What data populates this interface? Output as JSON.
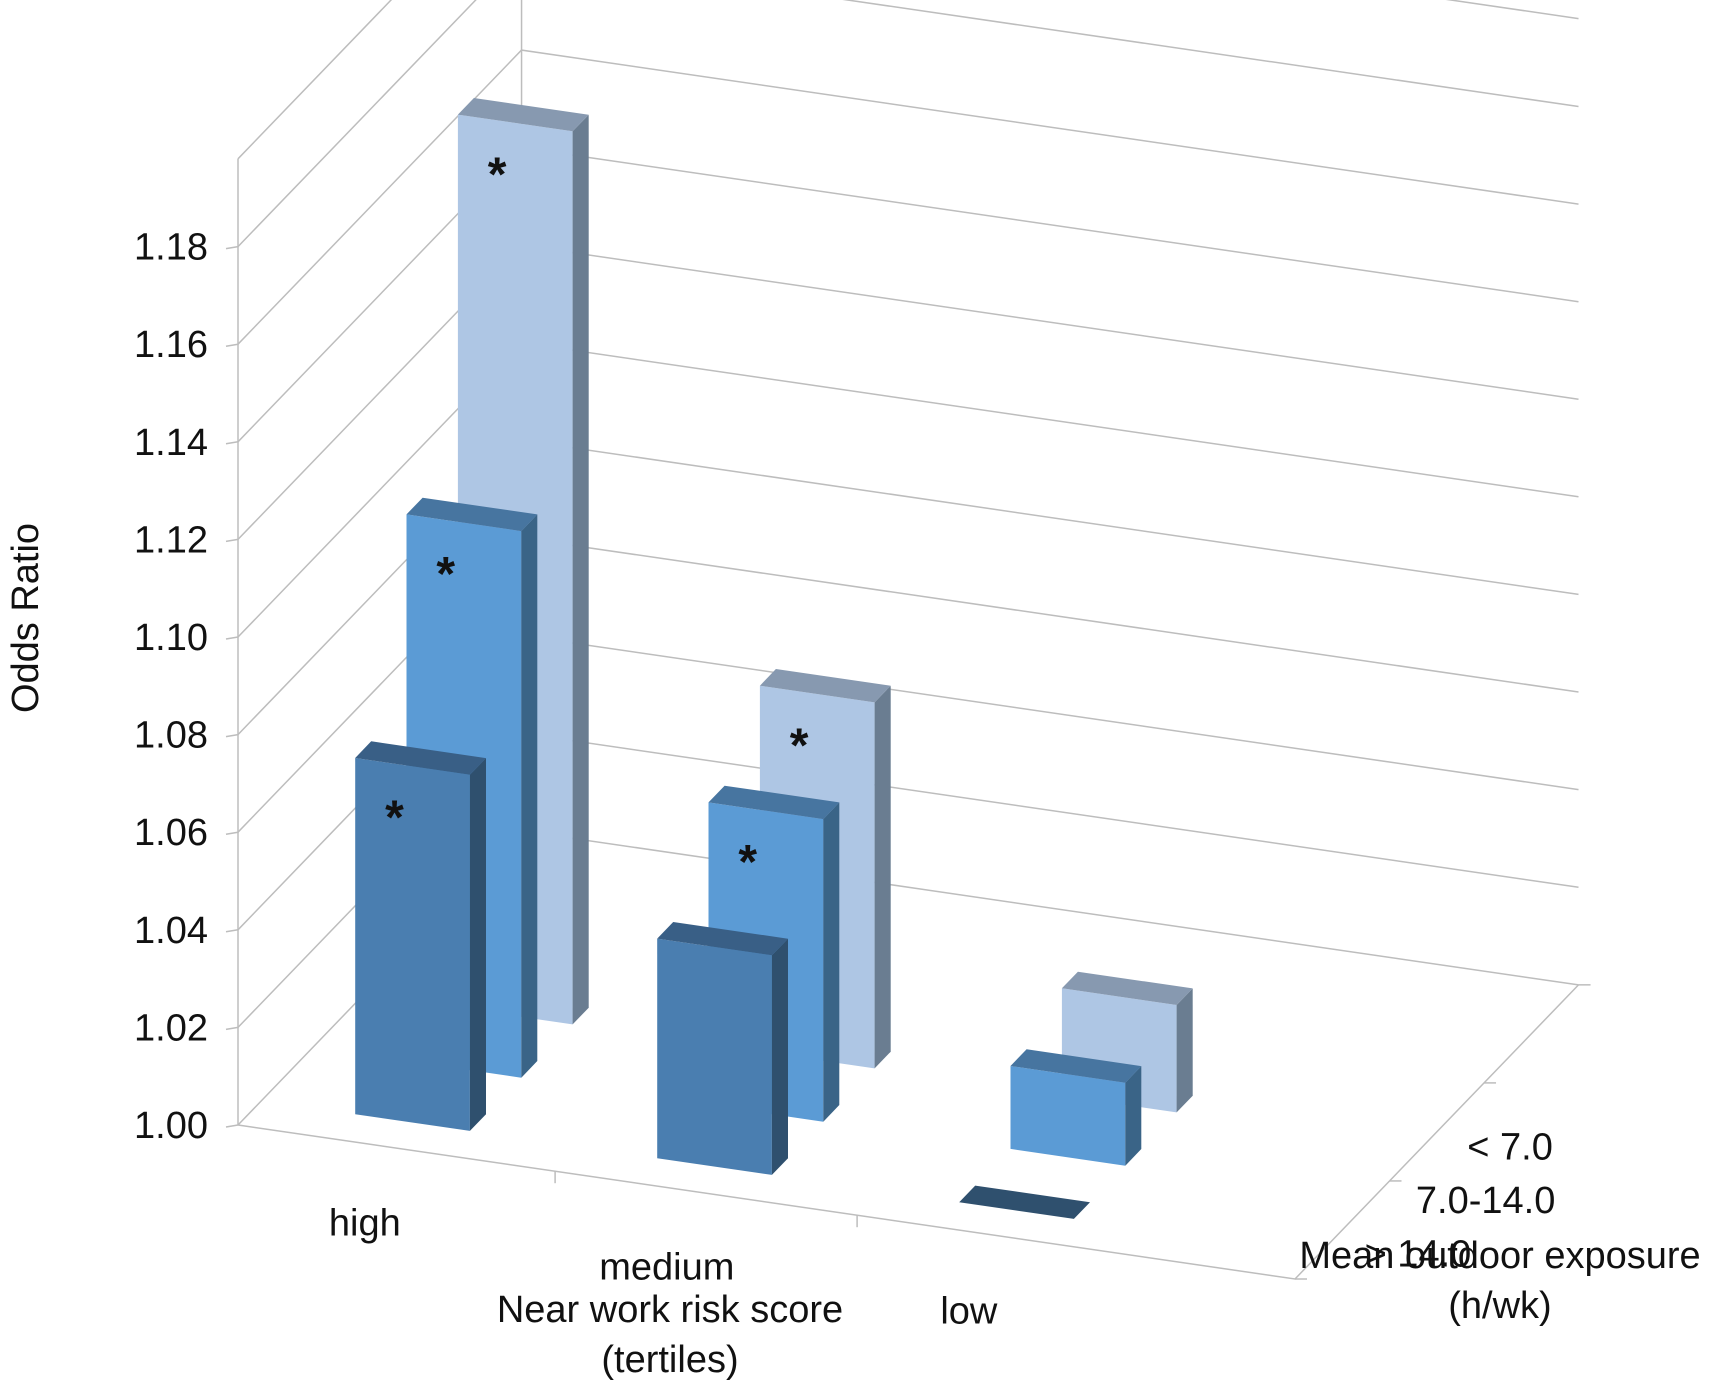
{
  "chart_data": {
    "type": "bar",
    "subtype": "3d-column",
    "ylabel": "Odds Ratio",
    "xlabel": "Near work risk score\n(tertiles)",
    "zlabel": "Mean outdoor exposure\n(h/wk)",
    "yticks": [
      "1.00",
      "1.02",
      "1.04",
      "1.06",
      "1.08",
      "1.10",
      "1.12",
      "1.14",
      "1.16",
      "1.18"
    ],
    "ylim": [
      1.0,
      1.18
    ],
    "categories": [
      "high",
      "medium",
      "low"
    ],
    "series": [
      {
        "name": "> 14.0",
        "values": [
          1.073,
          1.045,
          1.0
        ],
        "significant": [
          true,
          false,
          false
        ]
      },
      {
        "name": "7.0-14.0",
        "values": [
          1.112,
          1.062,
          1.017
        ],
        "significant": [
          true,
          true,
          false
        ]
      },
      {
        "name": "< 7.0",
        "values": [
          1.183,
          1.075,
          1.022
        ],
        "significant": [
          true,
          true,
          false
        ]
      }
    ],
    "significance_marker": "*",
    "colors": {
      "> 14.0": {
        "front": "#4a7eb0",
        "side": "#2f506e",
        "top": "#395f86"
      },
      "7.0-14.0": {
        "front": "#5b9bd5",
        "side": "#3a6487",
        "top": "#4775a0"
      },
      "< 7.0": {
        "front": "#aec6e4",
        "side": "#6a7d91",
        "top": "#8799b0"
      }
    },
    "grid": true
  }
}
